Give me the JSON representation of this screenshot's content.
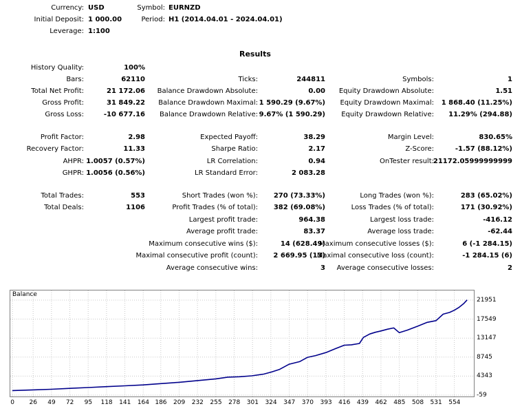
{
  "header": {
    "currency_label": "Currency:",
    "currency_value": "USD",
    "deposit_label": "Initial Deposit:",
    "deposit_value": "1 000.00",
    "leverage_label": "Leverage:",
    "leverage_value": "1:100",
    "symbol_label": "Symbol:",
    "symbol_value": "EURNZD",
    "period_label": "Period:",
    "period_value": "H1 (2014.04.01 - 2024.04.01)"
  },
  "results_title": "Results",
  "left": {
    "history_quality_label": "History Quality:",
    "history_quality_value": "100%",
    "bars_label": "Bars:",
    "bars_value": "62110",
    "net_profit_label": "Total Net Profit:",
    "net_profit_value": "21 172.06",
    "gross_profit_label": "Gross Profit:",
    "gross_profit_value": "31 849.22",
    "gross_loss_label": "Gross Loss:",
    "gross_loss_value": "-10 677.16",
    "profit_factor_label": "Profit Factor:",
    "profit_factor_value": "2.98",
    "recovery_factor_label": "Recovery Factor:",
    "recovery_factor_value": "11.33",
    "ahpr_label": "AHPR:",
    "ahpr_value": "1.0057 (0.57%)",
    "ghpr_label": "GHPR:",
    "ghpr_value": "1.0056 (0.56%)",
    "total_trades_label": "Total Trades:",
    "total_trades_value": "553",
    "total_deals_label": "Total Deals:",
    "total_deals_value": "1106"
  },
  "middle": {
    "ticks_label": "Ticks:",
    "ticks_value": "244811",
    "bal_dd_abs_label": "Balance Drawdown Absolute:",
    "bal_dd_abs_value": "0.00",
    "bal_dd_max_label": "Balance Drawdown Maximal:",
    "bal_dd_max_value": "1 590.29 (9.67%)",
    "bal_dd_rel_label": "Balance Drawdown Relative:",
    "bal_dd_rel_value": "9.67% (1 590.29)",
    "expected_payoff_label": "Expected Payoff:",
    "expected_payoff_value": "38.29",
    "sharpe_label": "Sharpe Ratio:",
    "sharpe_value": "2.17",
    "lr_corr_label": "LR Correlation:",
    "lr_corr_value": "0.94",
    "lr_err_label": "LR Standard Error:",
    "lr_err_value": "2 083.28",
    "short_trades_label": "Short Trades (won %):",
    "short_trades_value": "270 (73.33%)",
    "profit_trades_label": "Profit Trades (% of total):",
    "profit_trades_value": "382 (69.08%)",
    "largest_profit_label": "Largest profit trade:",
    "largest_profit_value": "964.38",
    "avg_profit_label": "Average profit trade:",
    "avg_profit_value": "83.37",
    "max_cons_wins_label": "Maximum consecutive wins ($):",
    "max_cons_wins_value": "14 (628.49)",
    "max_cons_profit_label": "Maximal consecutive profit (count):",
    "max_cons_profit_value": "2 669.95 (13)",
    "avg_cons_wins_label": "Average consecutive wins:",
    "avg_cons_wins_value": "3"
  },
  "right": {
    "symbols_label": "Symbols:",
    "symbols_value": "1",
    "eq_dd_abs_label": "Equity Drawdown Absolute:",
    "eq_dd_abs_value": "1.51",
    "eq_dd_max_label": "Equity Drawdown Maximal:",
    "eq_dd_max_value": "1 868.40 (11.25%)",
    "eq_dd_rel_label": "Equity Drawdown Relative:",
    "eq_dd_rel_value": "11.29% (294.88)",
    "margin_level_label": "Margin Level:",
    "margin_level_value": "830.65%",
    "zscore_label": "Z-Score:",
    "zscore_value": "-1.57 (88.12%)",
    "ontester_label": "OnTester result:",
    "ontester_value": "21172.05999999999",
    "long_trades_label": "Long Trades (won %):",
    "long_trades_value": "283 (65.02%)",
    "loss_trades_label": "Loss Trades (% of total):",
    "loss_trades_value": "171 (30.92%)",
    "largest_loss_label": "Largest loss trade:",
    "largest_loss_value": "-416.12",
    "avg_loss_label": "Average loss trade:",
    "avg_loss_value": "-62.44",
    "max_cons_losses_label": "Maximum consecutive losses ($):",
    "max_cons_losses_value": "6 (-1 284.15)",
    "max_cons_loss_label": "Maximal consecutive loss (count):",
    "max_cons_loss_value": "-1 284.15 (6)",
    "avg_cons_losses_label": "Average consecutive losses:",
    "avg_cons_losses_value": "2"
  },
  "chart_data": {
    "type": "line",
    "title": "Balance",
    "line_color": "#00008b",
    "grid": true,
    "xlim": [
      0,
      575
    ],
    "ylim": [
      -59,
      21951
    ],
    "x_ticks": [
      "0",
      "26",
      "49",
      "72",
      "95",
      "118",
      "141",
      "164",
      "186",
      "209",
      "232",
      "255",
      "278",
      "301",
      "324",
      "347",
      "370",
      "393",
      "416",
      "439",
      "462",
      "485",
      "508",
      "531",
      "554"
    ],
    "x_tick_values": [
      0,
      26,
      49,
      72,
      95,
      118,
      141,
      164,
      186,
      209,
      232,
      255,
      278,
      301,
      324,
      347,
      370,
      393,
      416,
      439,
      462,
      485,
      508,
      531,
      554
    ],
    "y_ticks": [
      "21951",
      "17549",
      "13147",
      "8745",
      "4343",
      "-59"
    ],
    "y_tick_values": [
      21951,
      17549,
      13147,
      8745,
      4343,
      -59
    ],
    "series": [
      {
        "x": [
          0,
          26,
          49,
          72,
          95,
          118,
          141,
          164,
          186,
          209,
          232,
          255,
          270,
          285,
          300,
          315,
          325,
          335,
          347,
          360,
          370,
          380,
          393,
          405,
          416,
          425,
          435,
          440,
          448,
          455,
          462,
          470,
          478,
          485,
          495,
          508,
          520,
          531,
          540,
          548,
          554,
          560,
          566,
          570
        ],
        "y": [
          1000,
          1150,
          1300,
          1500,
          1700,
          1900,
          2100,
          2300,
          2600,
          2900,
          3300,
          3700,
          4100,
          4200,
          4400,
          4800,
          5300,
          5900,
          7100,
          7700,
          8700,
          9100,
          9800,
          10700,
          11500,
          11600,
          11900,
          13300,
          14100,
          14500,
          14800,
          15200,
          15500,
          14400,
          15000,
          15900,
          16800,
          17200,
          18700,
          19100,
          19600,
          20300,
          21200,
          22000
        ]
      }
    ]
  }
}
